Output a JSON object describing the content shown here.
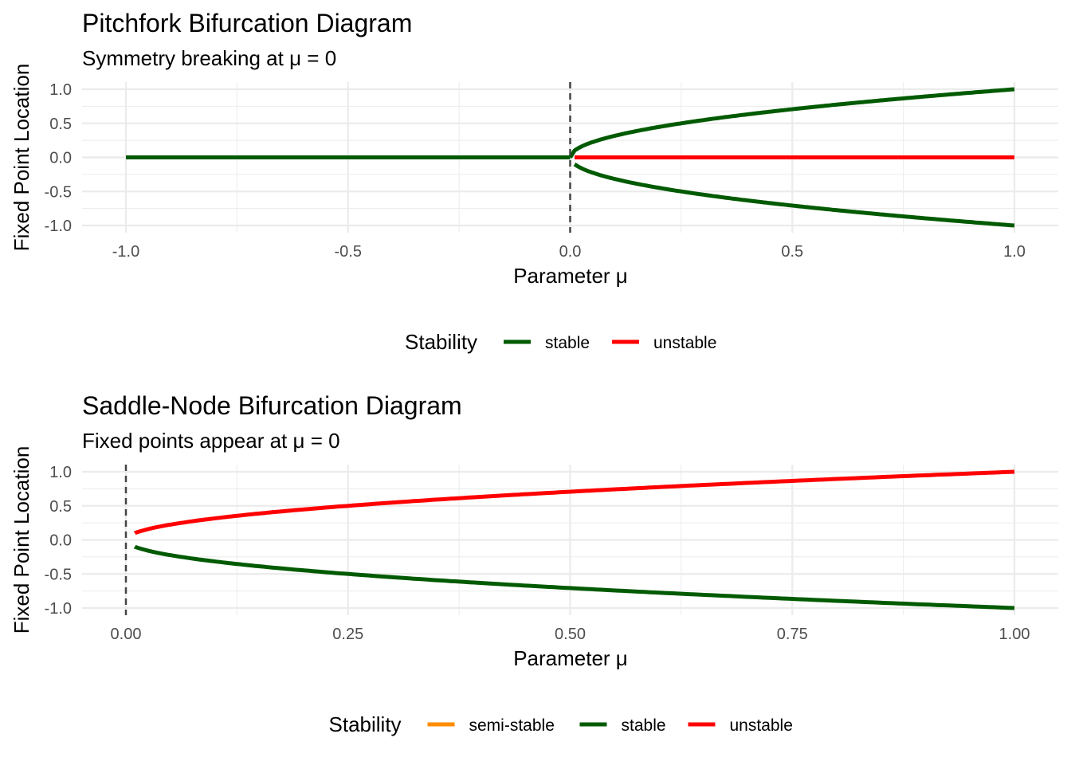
{
  "chart_data": [
    {
      "type": "line",
      "title": "Pitchfork Bifurcation Diagram",
      "subtitle": "Symmetry breaking at μ = 0",
      "xlabel": "Parameter μ",
      "ylabel": "Fixed Point Location",
      "xlim": [
        -1,
        1
      ],
      "ylim": [
        -1,
        1
      ],
      "xticks": [
        -1.0,
        -0.5,
        0.0,
        0.5,
        1.0
      ],
      "xtick_labels": [
        "-1.0",
        "-0.5",
        "0.0",
        "0.5",
        "1.0"
      ],
      "yticks": [
        1.0,
        0.5,
        0.0,
        -0.5,
        -1.0
      ],
      "ytick_labels": [
        "1.0",
        "0.5",
        "0.0",
        "-0.5",
        "-1.0"
      ],
      "vline": 0,
      "grid": true,
      "legend": {
        "title": "Stability",
        "position": "bottom",
        "entries": [
          {
            "label": "stable",
            "color": "#005A00"
          },
          {
            "label": "unstable",
            "color": "#FF0000"
          }
        ]
      },
      "series": [
        {
          "name": "stable",
          "color": "#005A00",
          "description": "x = 0 for μ in [-1, 0]",
          "x": [
            -1,
            0
          ],
          "y": [
            0,
            0
          ]
        },
        {
          "name": "stable",
          "color": "#005A00",
          "description": "x = +√μ for μ in (0, 1]",
          "func": "sqrt",
          "range": [
            0.0,
            1
          ],
          "connect_origin": true
        },
        {
          "name": "stable",
          "color": "#005A00",
          "description": "x = -√μ for μ in [0.01, 1]",
          "func": "negsqrt",
          "range": [
            0.01,
            1
          ]
        },
        {
          "name": "unstable",
          "color": "#FF0000",
          "description": "x = 0 for μ in [0.01, 1]",
          "x": [
            0.01,
            1
          ],
          "y": [
            0,
            0
          ]
        }
      ]
    },
    {
      "type": "line",
      "title": "Saddle-Node Bifurcation Diagram",
      "subtitle": "Fixed points appear at μ = 0",
      "xlabel": "Parameter μ",
      "ylabel": "Fixed Point Location",
      "xlim": [
        0,
        1
      ],
      "ylim": [
        -1,
        1
      ],
      "xticks": [
        0.0,
        0.25,
        0.5,
        0.75,
        1.0
      ],
      "xtick_labels": [
        "0.00",
        "0.25",
        "0.50",
        "0.75",
        "1.00"
      ],
      "yticks": [
        1.0,
        0.5,
        0.0,
        -0.5,
        -1.0
      ],
      "ytick_labels": [
        "1.0",
        "0.5",
        "0.0",
        "-0.5",
        "-1.0"
      ],
      "vline": 0,
      "grid": true,
      "legend": {
        "title": "Stability",
        "position": "bottom",
        "entries": [
          {
            "label": "semi-stable",
            "color": "#FF8C00"
          },
          {
            "label": "stable",
            "color": "#005A00"
          },
          {
            "label": "unstable",
            "color": "#FF0000"
          }
        ]
      },
      "series": [
        {
          "name": "unstable",
          "color": "#FF0000",
          "description": "x = +√μ for μ in [0.01, 1]",
          "func": "sqrt",
          "range": [
            0.01,
            1
          ]
        },
        {
          "name": "stable",
          "color": "#005A00",
          "description": "x = -√μ for μ in [0.01, 1]",
          "func": "negsqrt",
          "range": [
            0.01,
            1
          ]
        }
      ]
    }
  ]
}
